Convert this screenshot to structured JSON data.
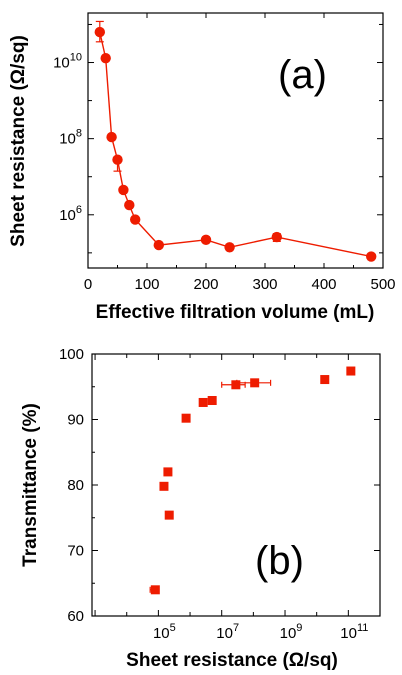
{
  "chart_data": [
    {
      "id": "a",
      "type": "line",
      "panel_label": "(a)",
      "xlabel": "Effective filtration volume (mL)",
      "ylabel": "Sheet resistance (Ω/sq)",
      "xlim": [
        0,
        500
      ],
      "ylim": [
        40000,
        200000000000
      ],
      "yscale": "log",
      "xticks": [
        0,
        100,
        200,
        300,
        400,
        500
      ],
      "xtick_labels": [
        "0",
        "100",
        "200",
        "300",
        "400",
        "500"
      ],
      "yticks": [
        1000000,
        100000000,
        10000000000
      ],
      "ytick_labels": [
        {
          "base": "10",
          "exp": "6"
        },
        {
          "base": "10",
          "exp": "8"
        },
        {
          "base": "10",
          "exp": "10"
        }
      ],
      "color": "#ee1c00",
      "series": [
        {
          "points": [
            {
              "x": 20,
              "y": 63000000000,
              "yerr_hi": 120000000000,
              "yerr_lo": 35000000000
            },
            {
              "x": 30,
              "y": 13000000000
            },
            {
              "x": 40,
              "y": 110000000
            },
            {
              "x": 50,
              "y": 28000000,
              "yerr_lo": 14000000
            },
            {
              "x": 60,
              "y": 4500000
            },
            {
              "x": 70,
              "y": 1800000
            },
            {
              "x": 80,
              "y": 750000
            },
            {
              "x": 120,
              "y": 160000
            },
            {
              "x": 200,
              "y": 220000
            },
            {
              "x": 240,
              "y": 140000
            },
            {
              "x": 320,
              "y": 260000,
              "yerr_hi": 320000,
              "yerr_lo": 200000
            },
            {
              "x": 480,
              "y": 80000
            }
          ]
        }
      ]
    },
    {
      "id": "b",
      "type": "scatter",
      "panel_label": "(b)",
      "xlabel": "Sheet resistance (Ω/sq)",
      "ylabel": "Transmittance (%)",
      "xscale": "log",
      "xlim": [
        800,
        1000000000000
      ],
      "ylim": [
        60,
        100
      ],
      "xticks": [
        100000,
        10000000,
        1000000000,
        100000000000
      ],
      "xtick_labels": [
        {
          "base": "10",
          "exp": "5"
        },
        {
          "base": "10",
          "exp": "7"
        },
        {
          "base": "10",
          "exp": "9"
        },
        {
          "base": "10",
          "exp": "11"
        }
      ],
      "yticks": [
        60,
        70,
        80,
        90,
        100
      ],
      "ytick_labels": [
        "60",
        "70",
        "80",
        "90",
        "100"
      ],
      "color": "#ee1c00",
      "series": [
        {
          "points": [
            {
              "x": 80000,
              "y": 64,
              "xerr_lo": 55000,
              "xerr_hi": 100000
            },
            {
              "x": 150000,
              "y": 79.8
            },
            {
              "x": 200000,
              "y": 82
            },
            {
              "x": 220000,
              "y": 75.4
            },
            {
              "x": 750000,
              "y": 90.2
            },
            {
              "x": 2600000,
              "y": 92.6
            },
            {
              "x": 5000000,
              "y": 92.9
            },
            {
              "x": 28000000,
              "y": 95.3,
              "xerr_lo": 10000000,
              "xerr_hi": 55000000
            },
            {
              "x": 110000000,
              "y": 95.6,
              "xerr_lo": 30000000,
              "xerr_hi": 350000000
            },
            {
              "x": 18000000000,
              "y": 96.1
            },
            {
              "x": 120000000000,
              "y": 97.4
            }
          ]
        }
      ]
    }
  ]
}
